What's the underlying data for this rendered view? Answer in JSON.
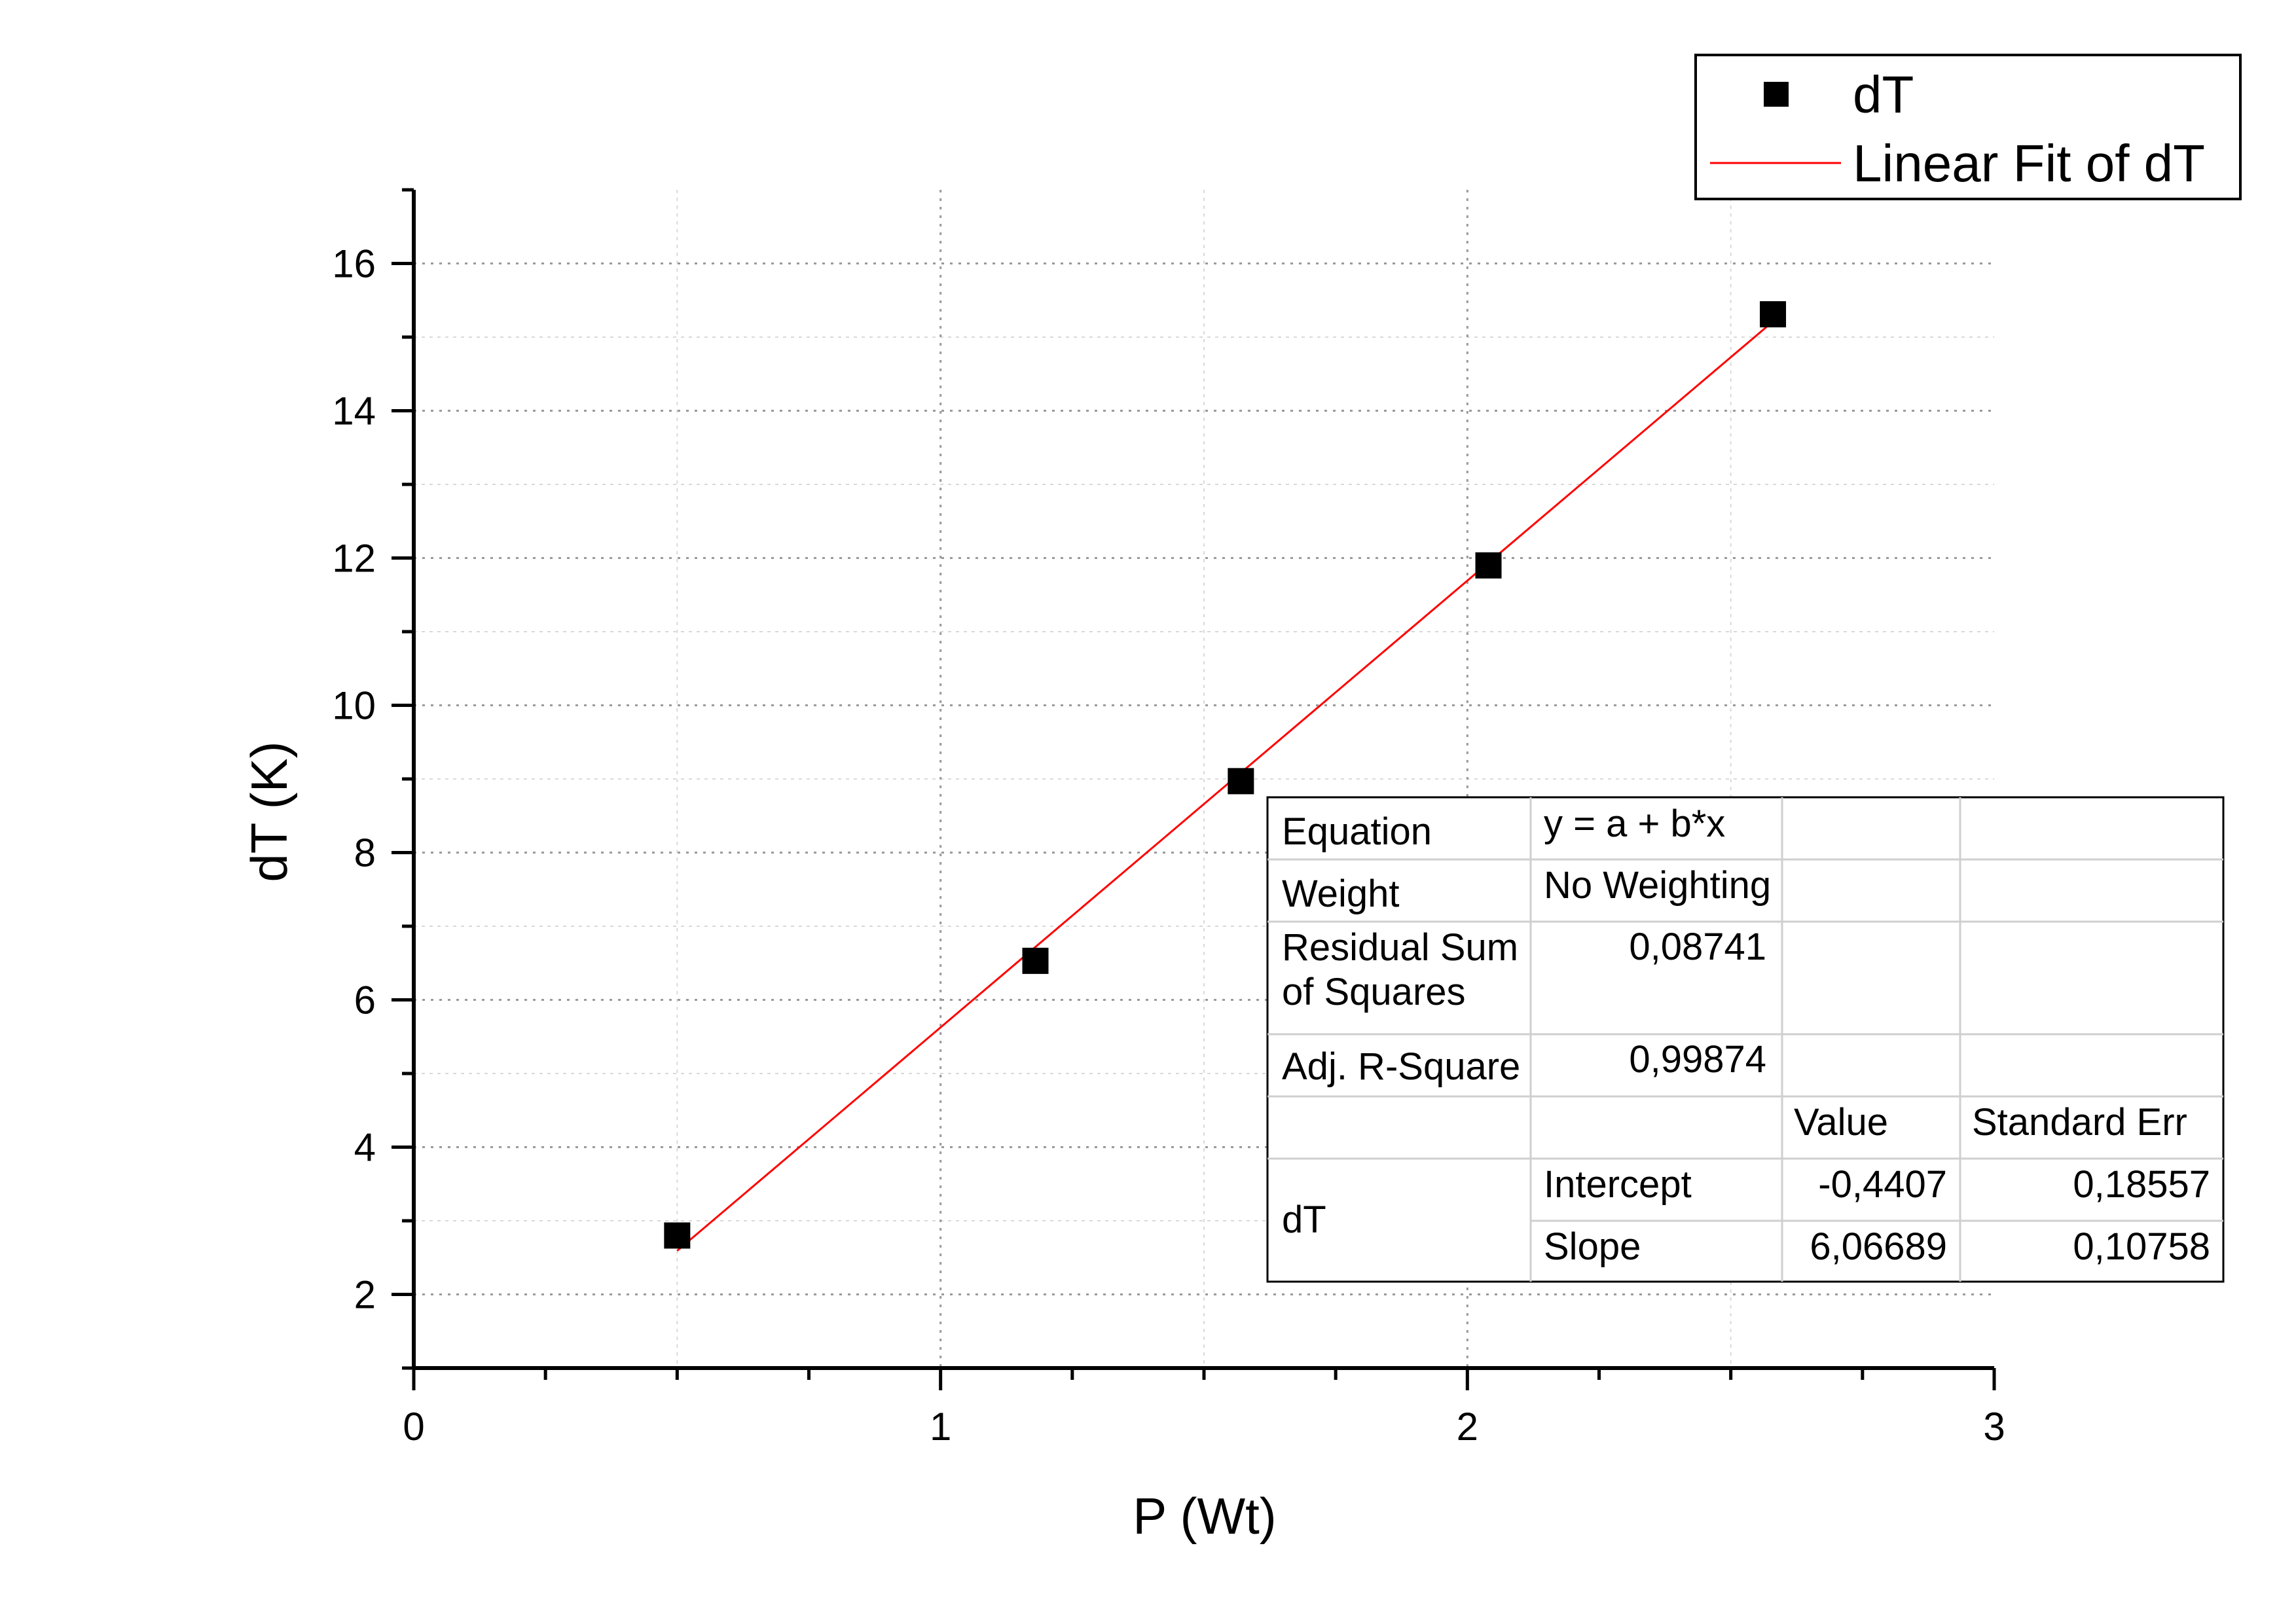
{
  "chart_data": {
    "type": "scatter",
    "xlabel": "P (Wt)",
    "ylabel": "dT (K)",
    "xlim": [
      0,
      3
    ],
    "ylim": [
      1,
      17
    ],
    "x_ticks": [
      0,
      1,
      2,
      3
    ],
    "y_ticks": [
      2,
      4,
      6,
      8,
      10,
      12,
      14,
      16
    ],
    "x_tick_labels": [
      "0",
      "1",
      "2",
      "3"
    ],
    "y_tick_labels": [
      "2",
      "4",
      "6",
      "8",
      "10",
      "12",
      "14",
      "16"
    ],
    "grid": true,
    "legend": {
      "position": "top-right",
      "entries": [
        "dT",
        "Linear Fit of dT"
      ]
    },
    "series": [
      {
        "name": "dT",
        "kind": "scatter",
        "marker": "square",
        "color": "#000000",
        "x": [
          0.5,
          1.18,
          1.57,
          2.04,
          2.58
        ],
        "y": [
          2.8,
          6.53,
          8.97,
          11.9,
          15.31
        ]
      },
      {
        "name": "Linear Fit of dT",
        "kind": "line",
        "color": "#ff0000",
        "intercept": -0.4407,
        "slope": 6.06689,
        "x_range": [
          0.5,
          2.58
        ]
      }
    ],
    "fit_table": {
      "rows": [
        {
          "label": "Equation",
          "value": "y = a + b*x"
        },
        {
          "label": "Weight",
          "value": "No Weighting"
        },
        {
          "label": "Residual Sum of Squares",
          "value": "0,08741"
        },
        {
          "label": "Adj. R-Square",
          "value": "0,99874"
        }
      ],
      "header": [
        "Value",
        "Standard Err"
      ],
      "group_label": "dT",
      "params": [
        {
          "name": "Intercept",
          "value": "-0,4407",
          "error": "0,18557"
        },
        {
          "name": "Slope",
          "value": "6,06689",
          "error": "0,10758"
        }
      ]
    }
  }
}
